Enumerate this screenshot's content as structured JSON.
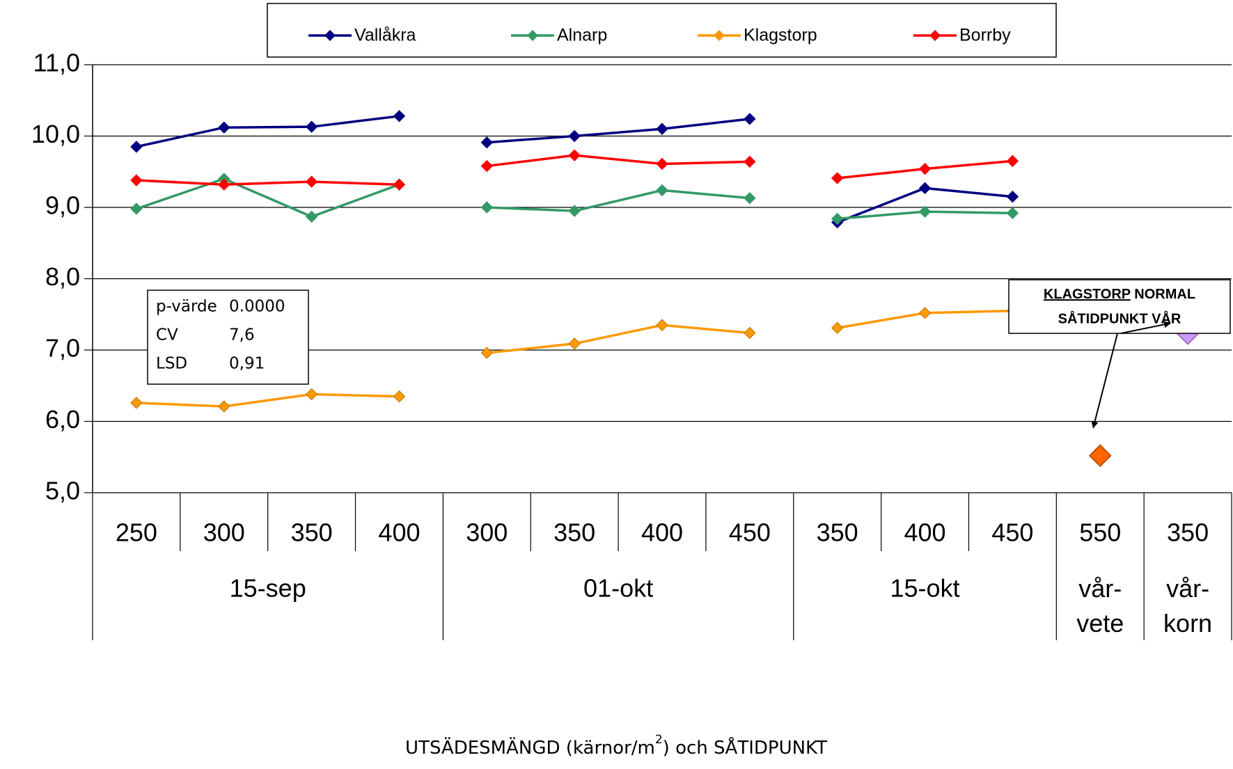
{
  "chart_data": {
    "type": "line",
    "groups": [
      {
        "label": "15-sep",
        "categories": [
          "250",
          "300",
          "350",
          "400"
        ]
      },
      {
        "label": "01-okt",
        "categories": [
          "300",
          "350",
          "400",
          "450"
        ]
      },
      {
        "label": "15-okt",
        "categories": [
          "350",
          "400",
          "450"
        ]
      },
      {
        "label": "vår-\nvete",
        "categories": [
          "550"
        ]
      },
      {
        "label": "vår-\nkorn",
        "categories": [
          "350"
        ]
      }
    ],
    "series": [
      {
        "name": "Vallåkra",
        "color": "#000080",
        "values": [
          9.85,
          10.12,
          10.13,
          10.28,
          9.91,
          10.0,
          10.1,
          10.24,
          8.79,
          9.27,
          9.15,
          null,
          null
        ]
      },
      {
        "name": "Alnarp",
        "color": "#339966",
        "values": [
          8.98,
          9.4,
          8.87,
          9.32,
          9.0,
          8.95,
          9.24,
          9.13,
          8.84,
          8.94,
          8.92,
          null,
          null
        ]
      },
      {
        "name": "Klagstorp",
        "color": "#ff9900",
        "values": [
          6.26,
          6.21,
          6.38,
          6.35,
          6.96,
          7.09,
          7.35,
          7.24,
          7.31,
          7.52,
          7.55,
          null,
          null
        ]
      },
      {
        "name": "Borrby",
        "color": "#ff0000",
        "values": [
          9.38,
          9.32,
          9.36,
          9.32,
          9.58,
          9.73,
          9.61,
          9.64,
          9.41,
          9.54,
          9.65,
          null,
          null
        ]
      }
    ],
    "highlight_points": {
      "values": [
        null,
        null,
        null,
        null,
        null,
        null,
        null,
        null,
        null,
        null,
        null,
        5.52,
        7.23
      ],
      "colors": [
        "#ff6600",
        "#cc99ff"
      ]
    },
    "ylim": [
      5,
      11
    ],
    "yticks": [
      {
        "value": 5,
        "label": "5,0"
      },
      {
        "value": 6,
        "label": "6,0"
      },
      {
        "value": 7,
        "label": "7,0"
      },
      {
        "value": 8,
        "label": "8,0"
      },
      {
        "value": 9,
        "label": "9,0"
      },
      {
        "value": 10,
        "label": "10,0"
      },
      {
        "value": 11,
        "label": "11,0"
      }
    ],
    "grid": true,
    "x_label": {
      "before": "UTSÄDESMÄNGD (kärnor/m",
      "sup": "2",
      "after": ") och SÅTIDPUNKT"
    },
    "stats": [
      [
        "p-värde",
        "0.0000"
      ],
      [
        "CV",
        "7,6"
      ],
      [
        "LSD",
        "0,91"
      ]
    ],
    "annotation": {
      "underlined": "KLAGSTORP",
      "rest": " NORMAL",
      "line2": "SÅTIDPUNKT VÅR"
    }
  }
}
